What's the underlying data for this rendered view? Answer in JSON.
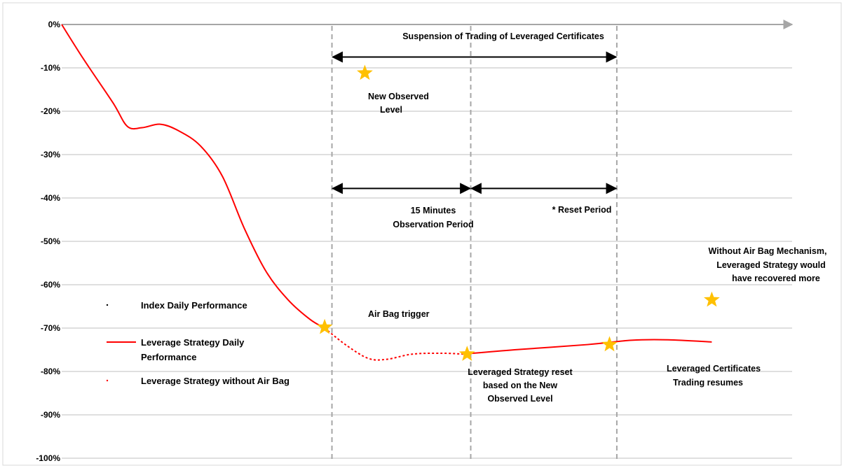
{
  "chart_data": {
    "type": "line",
    "title": "",
    "xlabel": "",
    "ylabel": "",
    "ylim": [
      -100,
      0
    ],
    "xlim": [
      0,
      100
    ],
    "y_ticks": [
      {
        "value": 0,
        "label": "0%"
      },
      {
        "value": -10,
        "label": "-10%"
      },
      {
        "value": -20,
        "label": "-20%"
      },
      {
        "value": -30,
        "label": "-30%"
      },
      {
        "value": -40,
        "label": "-40%"
      },
      {
        "value": -50,
        "label": "-50%"
      },
      {
        "value": -60,
        "label": "-60%"
      },
      {
        "value": -70,
        "label": "-70%"
      },
      {
        "value": -80,
        "label": "-80%"
      },
      {
        "value": -90,
        "label": "-90%"
      },
      {
        "value": -100,
        "label": "-100%"
      }
    ],
    "grid": true,
    "legend_position": "left",
    "legend": [
      {
        "label": "Index Daily Performance",
        "style": "dot",
        "color": "#000000"
      },
      {
        "label": "Leverage Strategy Daily Performance",
        "style": "solid",
        "color": "#ff0000"
      },
      {
        "label": "Leverage Strategy without Air Bag",
        "style": "dotted",
        "color": "#ff0000"
      }
    ],
    "series": [
      {
        "name": "Leverage Strategy Daily Performance",
        "color": "#ff0000",
        "style": "solid",
        "points": [
          [
            0,
            0
          ],
          [
            3,
            -8
          ],
          [
            7,
            -18
          ],
          [
            9,
            -23.5
          ],
          [
            11,
            -23.8
          ],
          [
            13.5,
            -23
          ],
          [
            16,
            -24.5
          ],
          [
            19,
            -28
          ],
          [
            22,
            -35
          ],
          [
            25,
            -47
          ],
          [
            28,
            -57
          ],
          [
            31,
            -63.5
          ],
          [
            34,
            -68
          ],
          [
            36,
            -70
          ]
        ]
      },
      {
        "name": "Leverage Strategy without Air Bag",
        "color": "#ff0000",
        "style": "dotted",
        "points": [
          [
            36,
            -70
          ],
          [
            39,
            -74
          ],
          [
            42,
            -77
          ],
          [
            44.5,
            -77.2
          ],
          [
            48,
            -76
          ],
          [
            52,
            -75.8
          ],
          [
            55,
            -76
          ]
        ]
      },
      {
        "name": "Leverage Strategy Daily Performance",
        "color": "#ff0000",
        "style": "solid",
        "points": [
          [
            55,
            -76
          ],
          [
            62,
            -75
          ],
          [
            72,
            -73.8
          ],
          [
            78,
            -72.8
          ],
          [
            83,
            -72.7
          ],
          [
            89,
            -73.2
          ]
        ]
      }
    ],
    "stars": [
      {
        "name": "new-observed-level",
        "x": 41.5,
        "y": -11.2
      },
      {
        "name": "air-bag-trigger",
        "x": 36,
        "y": -69.8
      },
      {
        "name": "leveraged-strategy-reset",
        "x": 55.5,
        "y": -76
      },
      {
        "name": "trading-resumes",
        "x": 75,
        "y": -73.8
      },
      {
        "name": "without-air-bag",
        "x": 89,
        "y": -63.5
      }
    ],
    "vertical_markers": [
      37,
      56,
      76
    ],
    "arrows": [
      {
        "name": "suspension",
        "from": 37,
        "to": 76,
        "y": -7.5
      },
      {
        "name": "observation",
        "from": 37,
        "to": 56,
        "y": -37.8
      },
      {
        "name": "reset",
        "from": 56,
        "to": 76,
        "y": -37.8
      }
    ],
    "annotations": {
      "suspension": "Suspension of  Trading of Leveraged Certificates",
      "new_observed": [
        "New Observed",
        "Level"
      ],
      "observation": [
        "15 Minutes",
        "Observation Period"
      ],
      "reset": "* Reset Period",
      "air_bag": "Air Bag trigger",
      "strategy_reset": [
        "Leveraged Strategy reset",
        "based on the New",
        "Observed Level"
      ],
      "resumes": [
        "Leveraged Certificates",
        "Trading resumes"
      ],
      "without_air_bag": [
        "Without Air Bag Mechanism,",
        "Leveraged Strategy would",
        "have recovered more"
      ]
    },
    "colors": {
      "line": "#ff0000",
      "star": "#ffc000",
      "grid": "#bfbfbf",
      "marker": "#a6a6a6",
      "axis": "#a6a6a6"
    }
  }
}
